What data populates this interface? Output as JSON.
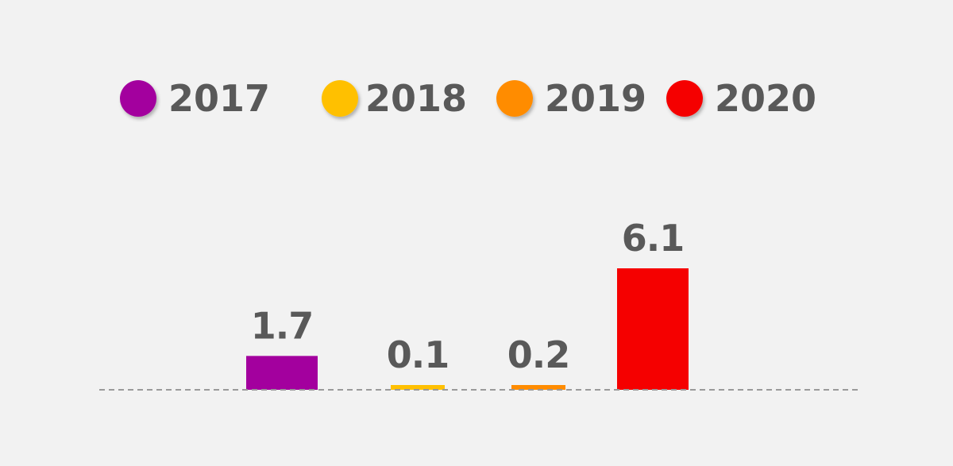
{
  "chart_data": {
    "type": "bar",
    "categories": [
      "2017",
      "2018",
      "2019",
      "2020"
    ],
    "values": [
      1.7,
      0.1,
      0.2,
      6.1
    ],
    "value_labels": [
      "1.7",
      "0.1",
      "0.2",
      "6.1"
    ],
    "colors": [
      "#a3009e",
      "#ffc000",
      "#ff8c00",
      "#f50000"
    ],
    "legend": {
      "position": "top",
      "entries": [
        "2017",
        "2018",
        "2019",
        "2020"
      ]
    },
    "title": "",
    "xlabel": "",
    "ylabel": "",
    "ylim": [
      0,
      6.1
    ],
    "grid": false,
    "baseline_style": "dashed"
  }
}
